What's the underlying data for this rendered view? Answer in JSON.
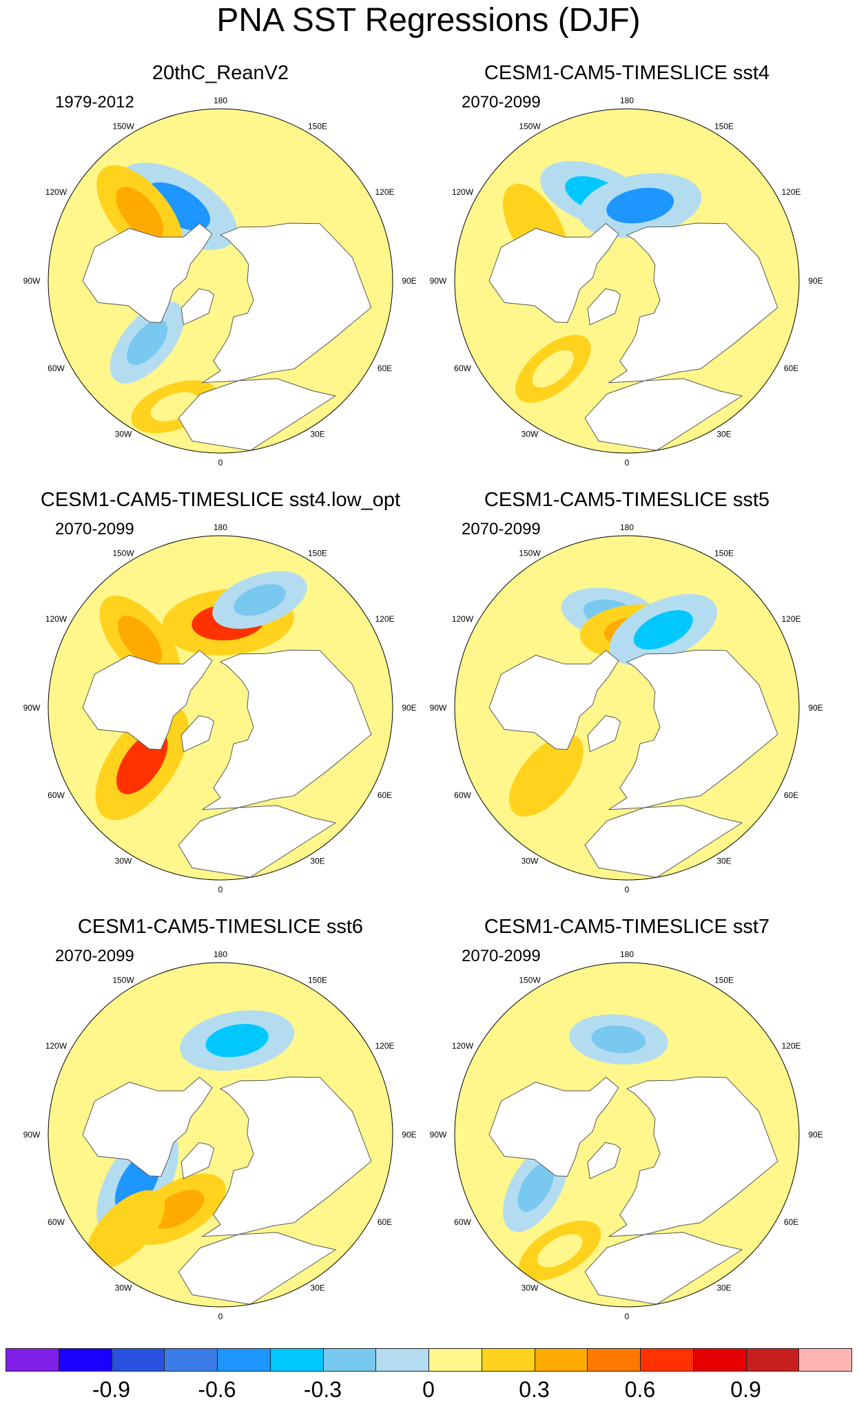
{
  "title": "PNA SST Regressions (DJF)",
  "lon_labels": {
    "top": "180",
    "bottom": "0",
    "left": "90W",
    "right": "90E",
    "upper_left_1": "150W",
    "upper_left_2": "120W",
    "upper_right_1": "150E",
    "upper_right_2": "120E",
    "lower_left_1": "60W",
    "lower_left_2": "30W",
    "lower_right_1": "60E",
    "lower_right_2": "30E"
  },
  "panels": [
    {
      "title": "20thC_ReanV2",
      "period": "1979-2012",
      "anomalies": [
        {
          "lon": -150,
          "lat": 45,
          "value": -0.6
        },
        {
          "lon": -130,
          "lat": 35,
          "value": 0.4
        },
        {
          "lon": -50,
          "lat": 40,
          "value": -0.2
        },
        {
          "lon": -20,
          "lat": 20,
          "value": 0.1
        }
      ]
    },
    {
      "title": "CESM1-CAM5-TIMESLICE sst4",
      "period": "2070-2099",
      "anomalies": [
        {
          "lon": -160,
          "lat": 42,
          "value": -0.4
        },
        {
          "lon": 170,
          "lat": 50,
          "value": -0.5
        },
        {
          "lon": -120,
          "lat": 35,
          "value": 0.2
        },
        {
          "lon": -40,
          "lat": 30,
          "value": 0.1
        }
      ]
    },
    {
      "title": "CESM1-CAM5-TIMESLICE sst4.low_opt",
      "period": "2070-2099",
      "anomalies": [
        {
          "lon": 175,
          "lat": 45,
          "value": 0.6
        },
        {
          "lon": -130,
          "lat": 35,
          "value": 0.3
        },
        {
          "lon": -55,
          "lat": 40,
          "value": 0.6
        },
        {
          "lon": 160,
          "lat": 30,
          "value": -0.2
        }
      ]
    },
    {
      "title": "CESM1-CAM5-TIMESLICE sst5",
      "period": "2070-2099",
      "anomalies": [
        {
          "lon": -170,
          "lat": 40,
          "value": -0.2
        },
        {
          "lon": 175,
          "lat": 50,
          "value": 0.3
        },
        {
          "lon": 155,
          "lat": 45,
          "value": -0.4
        },
        {
          "lon": -50,
          "lat": 35,
          "value": 0.2
        }
      ]
    },
    {
      "title": "CESM1-CAM5-TIMESLICE sst6",
      "period": "2070-2099",
      "anomalies": [
        {
          "lon": 170,
          "lat": 40,
          "value": -0.4
        },
        {
          "lon": -60,
          "lat": 40,
          "value": -0.5
        },
        {
          "lon": -30,
          "lat": 45,
          "value": 0.3
        },
        {
          "lon": -45,
          "lat": 20,
          "value": 0.2
        }
      ]
    },
    {
      "title": "CESM1-CAM5-TIMESLICE sst7",
      "period": "2070-2099",
      "anomalies": [
        {
          "lon": -175,
          "lat": 40,
          "value": -0.2
        },
        {
          "lon": -60,
          "lat": 35,
          "value": -0.2
        },
        {
          "lon": -30,
          "lat": 20,
          "value": 0.1
        }
      ]
    }
  ],
  "colorbar": {
    "colors": [
      "#7f1fe6",
      "#1a00ff",
      "#2a52e0",
      "#3c7ce8",
      "#1e96ff",
      "#00c8ff",
      "#78c8f0",
      "#b4dcf0",
      "#fff78c",
      "#ffd21e",
      "#ffaa00",
      "#ff7800",
      "#ff3200",
      "#e60000",
      "#c81e1e",
      "#ffb4b4"
    ],
    "labels": [
      "-0.9",
      "-0.6",
      "-0.3",
      "0",
      "0.3",
      "0.6",
      "0.9"
    ]
  }
}
